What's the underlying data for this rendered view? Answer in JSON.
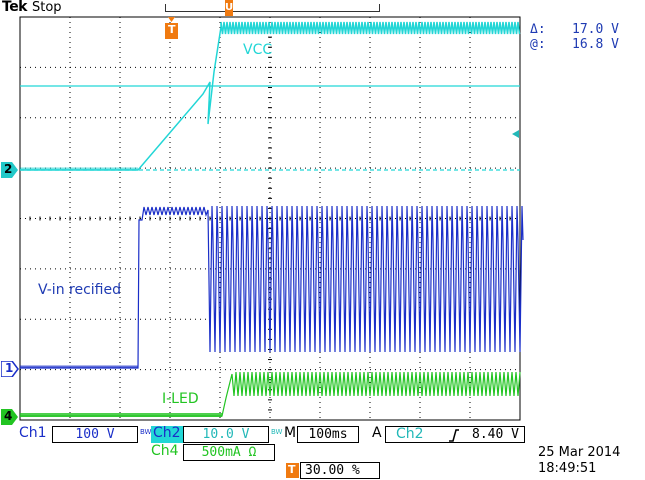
{
  "header": {
    "brand": "Tek",
    "run_state": "Stop",
    "delta_symbol": "Δ:",
    "at_symbol": "@:",
    "delta_value": "17.0 V",
    "at_value": "16.8 V"
  },
  "markers": {
    "trigger_top": "T",
    "trigger_pos": "U",
    "ch2_marker": "2",
    "ch1_marker": "1",
    "ch4_marker": "4"
  },
  "trace_labels": {
    "vcc": "VCC",
    "vin": "V-in recified",
    "iled": "I-LED"
  },
  "status": {
    "ch1_label": "Ch1",
    "ch1_scale": "100 V",
    "bw1": "BW",
    "ch2_label": "Ch2",
    "ch2_scale": "10.0 V",
    "bw2": "BW",
    "ch4_label": "Ch4",
    "ch4_scale": "500mA Ω",
    "timebase_label": "M",
    "timebase_value": "100ms",
    "trigger_mode": "A",
    "trigger_source": "Ch2",
    "trigger_slope_icon": "rising-edge-icon",
    "trigger_level": "8.40 V",
    "trigger_position_marker": "T",
    "trigger_position": "30.00 %",
    "date": "25 Mar  2014",
    "time": "18:49:51"
  },
  "colors": {
    "ch1": "#1a2ec8",
    "ch2": "#22d6d6",
    "ch4": "#22c422",
    "trigger": "#f07a10",
    "grid": "#000000",
    "label_blue": "#1f3bb3"
  }
}
